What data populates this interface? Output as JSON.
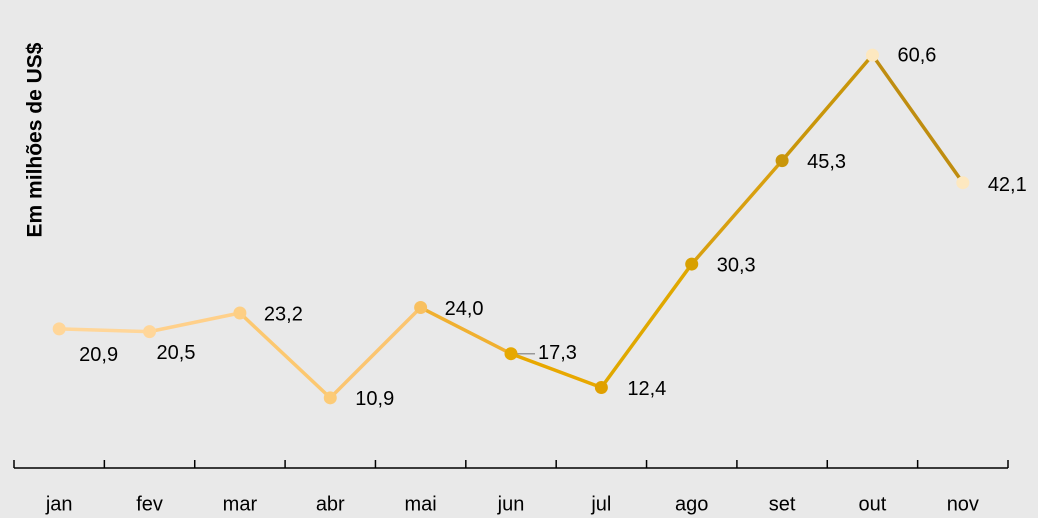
{
  "chart_data": {
    "type": "line",
    "y_label": "Em milhões de US$",
    "categories": [
      "jan",
      "fev",
      "mar",
      "abr",
      "mai",
      "jun",
      "jul",
      "ago",
      "set",
      "out",
      "nov"
    ],
    "series": [
      {
        "values": [
          20.9,
          20.5,
          23.2,
          10.9,
          24.0,
          17.3,
          12.4,
          30.3,
          45.3,
          60.6,
          42.1
        ],
        "value_labels": [
          "20,9",
          "20,5",
          "23,2",
          "10,9",
          "24,0",
          "17,3",
          "12,4",
          "30,3",
          "45,3",
          "60,6",
          "42,1"
        ],
        "point_colors": [
          "#ffd699",
          "#ffd699",
          "#fdcf85",
          "#fccb77",
          "#f8c060",
          "#e6a800",
          "#e0a000",
          "#d8a000",
          "#c9960a",
          "#fde8c0",
          "#fde8c0"
        ],
        "segment_colors": [
          "#ffd699",
          "#ffd08a",
          "#fcc870",
          "#fbc570",
          "#f0b030",
          "#e8a800",
          "#e0a800",
          "#d8a010",
          "#c9960a",
          "#bf8d10"
        ]
      }
    ],
    "ylim": [
      0,
      67
    ]
  }
}
